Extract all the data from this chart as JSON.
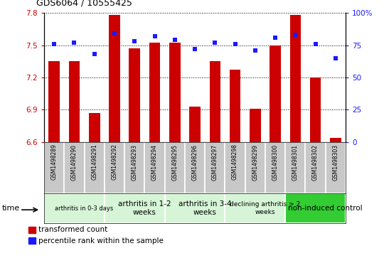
{
  "title": "GDS6064 / 10555425",
  "samples": [
    "GSM1498289",
    "GSM1498290",
    "GSM1498291",
    "GSM1498292",
    "GSM1498293",
    "GSM1498294",
    "GSM1498295",
    "GSM1498296",
    "GSM1498297",
    "GSM1498298",
    "GSM1498299",
    "GSM1498300",
    "GSM1498301",
    "GSM1498302",
    "GSM1498303"
  ],
  "bar_values": [
    7.35,
    7.35,
    6.87,
    7.78,
    7.47,
    7.52,
    7.52,
    6.93,
    7.35,
    7.27,
    6.91,
    7.5,
    7.78,
    7.2,
    6.64
  ],
  "dot_values": [
    76,
    77,
    68,
    84,
    78,
    82,
    79,
    72,
    77,
    76,
    71,
    81,
    83,
    76,
    65
  ],
  "bar_color": "#cc0000",
  "dot_color": "#1a1aff",
  "ylim_left": [
    6.6,
    7.8
  ],
  "ylim_right": [
    0,
    100
  ],
  "yticks_left": [
    6.6,
    6.9,
    7.2,
    7.5,
    7.8
  ],
  "yticks_right": [
    0,
    25,
    50,
    75,
    100
  ],
  "groups": [
    {
      "label": "arthritis in 0-3 days",
      "start": 0,
      "end": 3,
      "color": "#d6f5d6",
      "fontsize": 6
    },
    {
      "label": "arthritis in 1-2\nweeks",
      "start": 3,
      "end": 6,
      "color": "#d6f5d6",
      "fontsize": 7.5
    },
    {
      "label": "arthritis in 3-4\nweeks",
      "start": 6,
      "end": 9,
      "color": "#d6f5d6",
      "fontsize": 7.5
    },
    {
      "label": "declining arthritis > 2\nweeks",
      "start": 9,
      "end": 12,
      "color": "#d6f5d6",
      "fontsize": 6.5
    },
    {
      "label": "non-induced control",
      "start": 12,
      "end": 15,
      "color": "#33cc33",
      "fontsize": 7.5
    }
  ],
  "legend_bar_label": "transformed count",
  "legend_dot_label": "percentile rank within the sample",
  "xlabel": "time",
  "sample_bg": "#c8c8c8",
  "plot_bg": "#ffffff"
}
